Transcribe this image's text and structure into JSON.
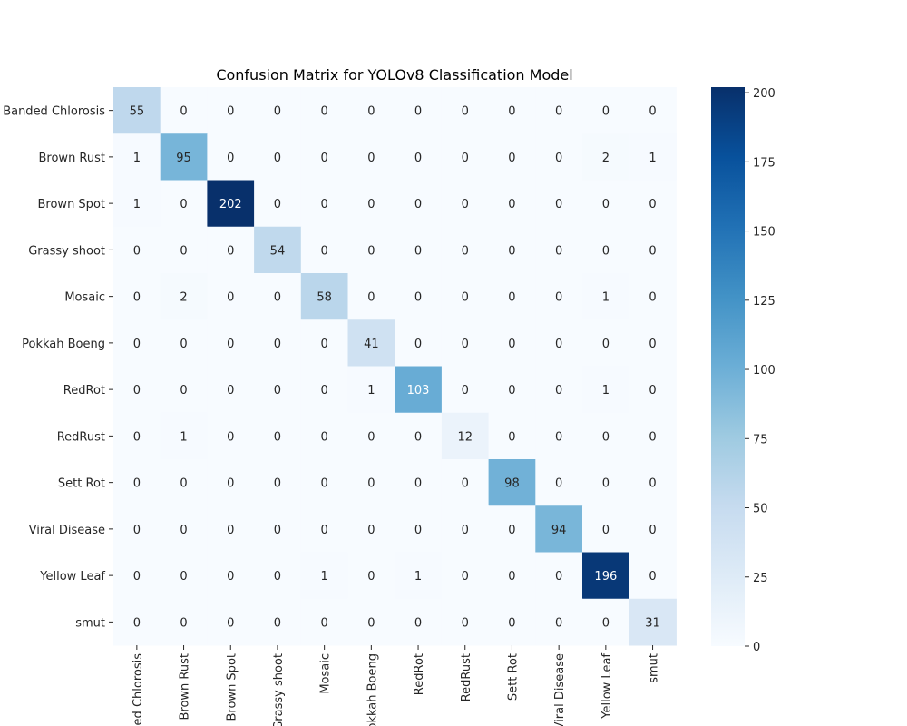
{
  "chart_data": {
    "type": "heatmap",
    "title": "Confusion Matrix for YOLOv8 Classification Model",
    "xlabel": "",
    "ylabel": "",
    "row_labels": [
      "Banded Chlorosis",
      "Brown Rust",
      "Brown Spot",
      "Grassy shoot",
      "Mosaic",
      "Pokkah Boeng",
      "RedRot",
      "RedRust",
      "Sett Rot",
      "Viral Disease",
      "Yellow Leaf",
      "smut"
    ],
    "col_labels": [
      "Banded Chlorosis",
      "Brown Rust",
      "Brown Spot",
      "Grassy shoot",
      "Mosaic",
      "Pokkah Boeng",
      "RedRot",
      "RedRust",
      "Sett Rot",
      "Viral Disease",
      "Yellow Leaf",
      "smut"
    ],
    "values": [
      [
        55,
        0,
        0,
        0,
        0,
        0,
        0,
        0,
        0,
        0,
        0,
        0
      ],
      [
        1,
        95,
        0,
        0,
        0,
        0,
        0,
        0,
        0,
        0,
        2,
        1
      ],
      [
        1,
        0,
        202,
        0,
        0,
        0,
        0,
        0,
        0,
        0,
        0,
        0
      ],
      [
        0,
        0,
        0,
        54,
        0,
        0,
        0,
        0,
        0,
        0,
        0,
        0
      ],
      [
        0,
        2,
        0,
        0,
        58,
        0,
        0,
        0,
        0,
        0,
        1,
        0
      ],
      [
        0,
        0,
        0,
        0,
        0,
        41,
        0,
        0,
        0,
        0,
        0,
        0
      ],
      [
        0,
        0,
        0,
        0,
        0,
        1,
        103,
        0,
        0,
        0,
        1,
        0
      ],
      [
        0,
        1,
        0,
        0,
        0,
        0,
        0,
        12,
        0,
        0,
        0,
        0
      ],
      [
        0,
        0,
        0,
        0,
        0,
        0,
        0,
        0,
        98,
        0,
        0,
        0
      ],
      [
        0,
        0,
        0,
        0,
        0,
        0,
        0,
        0,
        0,
        94,
        0,
        0
      ],
      [
        0,
        0,
        0,
        0,
        1,
        0,
        1,
        0,
        0,
        0,
        196,
        0
      ],
      [
        0,
        0,
        0,
        0,
        0,
        0,
        0,
        0,
        0,
        0,
        0,
        31
      ]
    ],
    "colormap": "Blues",
    "colorbar": {
      "vmin": 0,
      "vmax": 202,
      "ticks": [
        0,
        25,
        50,
        75,
        100,
        125,
        150,
        175,
        200
      ]
    },
    "annotations": true,
    "grid": false,
    "legend": "none"
  }
}
